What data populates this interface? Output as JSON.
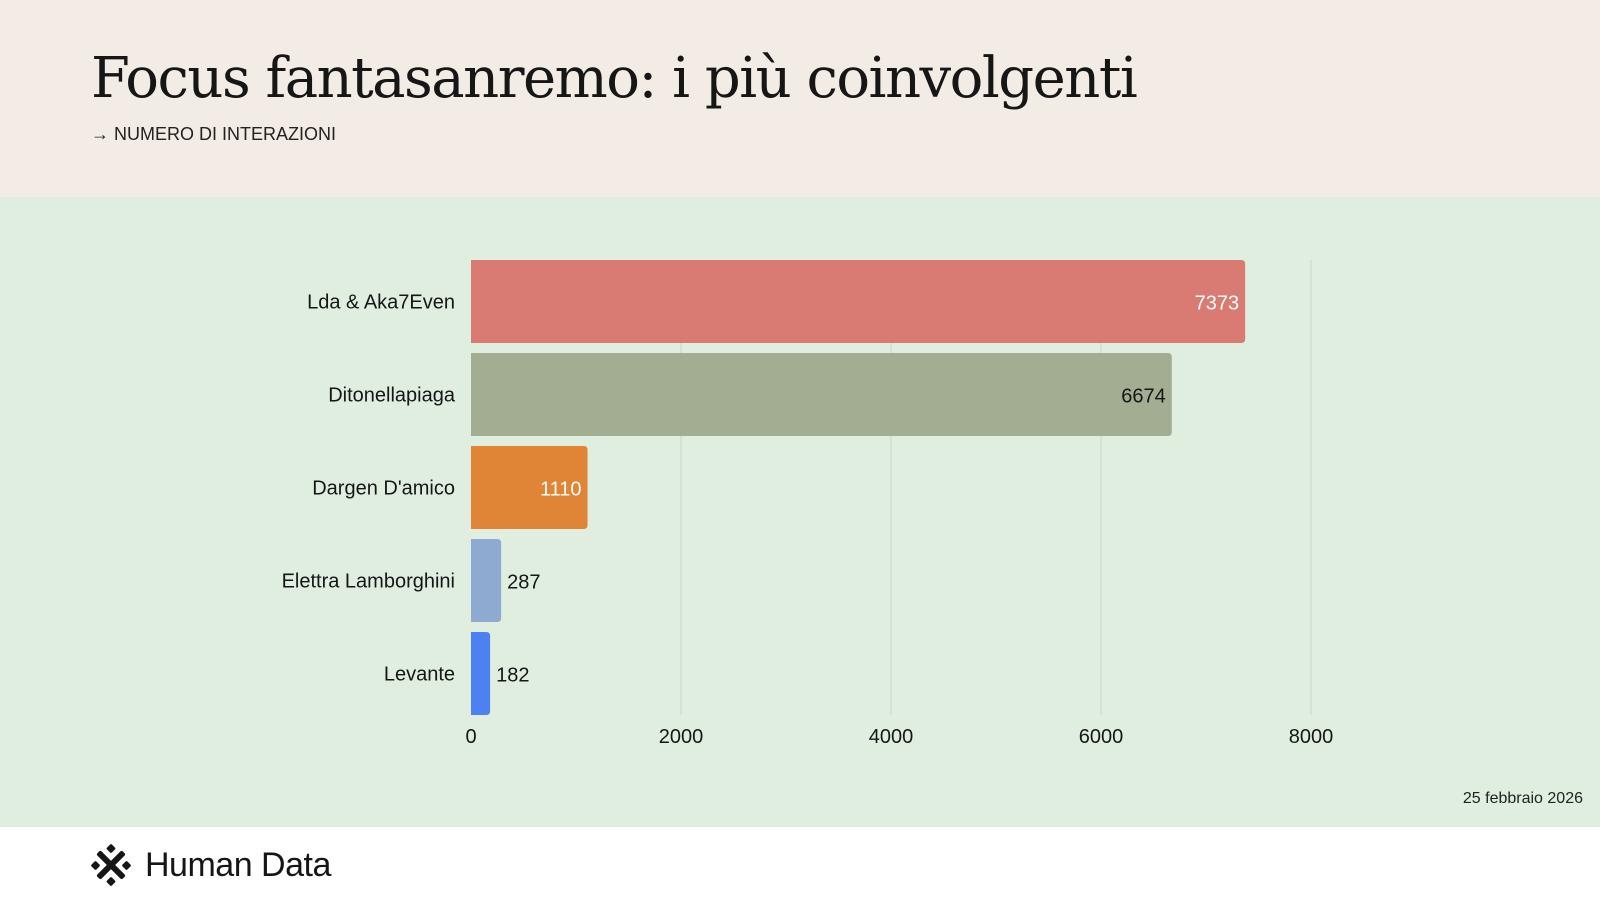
{
  "header": {
    "title": "Focus fantasanremo: i più coinvolgenti",
    "subtitle": "→ NUMERO DI INTERAZIONI"
  },
  "chart_data": {
    "type": "bar",
    "orientation": "horizontal",
    "categories": [
      "Lda & Aka7Even",
      "Ditonellapiaga",
      "Dargen D'amico",
      "Elettra Lamborghini",
      "Levante"
    ],
    "values": [
      7373,
      6674,
      1110,
      287,
      182
    ],
    "colors": [
      "#d97b72",
      "#a2ad91",
      "#e08536",
      "#8eaad0",
      "#4d80f0"
    ],
    "value_label_colors": [
      "#ffffff",
      "#161616",
      "#ffffff",
      "#161616",
      "#161616"
    ],
    "x_ticks": [
      0,
      2000,
      4000,
      6000,
      8000
    ],
    "xlim": [
      0,
      8000
    ],
    "grid": true,
    "title": "Focus fantasanremo: i più coinvolgenti",
    "xlabel": "",
    "ylabel": ""
  },
  "footer": {
    "date": "25 febbraio 2026",
    "brand": "Human Data",
    "brand_icon": "human-data-logo-icon"
  },
  "colors": {
    "header_bg": "#f3ece5",
    "chart_bg": "#dfeedf",
    "gridline": "#c9d6c9"
  }
}
